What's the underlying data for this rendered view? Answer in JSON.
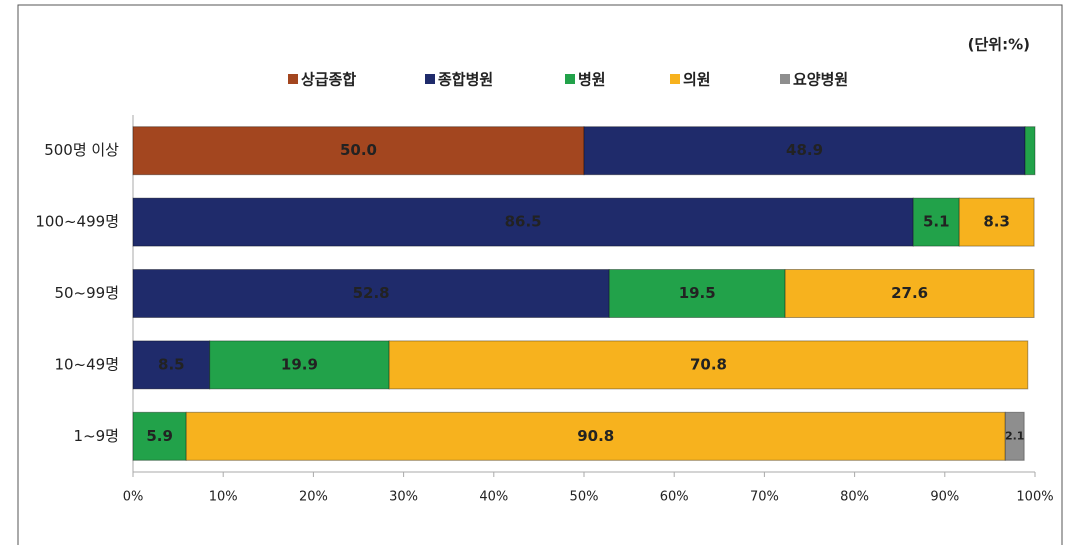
{
  "chart_data": {
    "type": "stacked_barh",
    "unit_note": "(단위:%)",
    "categories": [
      "500명 이상",
      "100~499명",
      "50~99명",
      "10~49명",
      "1~9명"
    ],
    "series": [
      {
        "name": "상급종합",
        "color": "#a3461f",
        "label_color": "#ffffff",
        "values": [
          50.0,
          null,
          null,
          null,
          null
        ],
        "value_labels": [
          "50.0",
          null,
          null,
          null,
          null
        ]
      },
      {
        "name": "종합병원",
        "color": "#1f2b6b",
        "label_color": "#ffffff",
        "values": [
          48.9,
          86.5,
          52.8,
          8.5,
          null
        ],
        "value_labels": [
          "48.9",
          "86.5",
          "52.8",
          "8.5",
          null
        ]
      },
      {
        "name": "병원",
        "color": "#22a24a",
        "label_color": "#111111",
        "values": [
          1.1,
          5.1,
          19.5,
          19.9,
          5.9
        ],
        "value_labels": [
          null,
          "5.1",
          "19.5",
          "19.9",
          "5.9"
        ]
      },
      {
        "name": "의원",
        "color": "#f7b21e",
        "label_color": "#ffffff",
        "values": [
          null,
          8.3,
          27.6,
          70.8,
          90.8
        ],
        "value_labels": [
          null,
          "8.3",
          "27.6",
          "70.8",
          "90.8"
        ]
      },
      {
        "name": "요양병원",
        "color": "#8e8e8e",
        "label_color": "#ffffff",
        "values": [
          null,
          null,
          null,
          null,
          2.1
        ],
        "value_labels": [
          null,
          null,
          null,
          null,
          "2.1"
        ]
      }
    ],
    "xlim": [
      0,
      100
    ],
    "xticks": [
      {
        "value": 0,
        "label": "0%"
      },
      {
        "value": 10,
        "label": "10%"
      },
      {
        "value": 20,
        "label": "20%"
      },
      {
        "value": 30,
        "label": "30%"
      },
      {
        "value": 40,
        "label": "40%"
      },
      {
        "value": 50,
        "label": "50%"
      },
      {
        "value": 60,
        "label": "60%"
      },
      {
        "value": 70,
        "label": "70%"
      },
      {
        "value": 80,
        "label": "80%"
      },
      {
        "value": 90,
        "label": "90%"
      },
      {
        "value": 100,
        "label": "100%"
      }
    ],
    "grid": false,
    "legend": "top"
  }
}
